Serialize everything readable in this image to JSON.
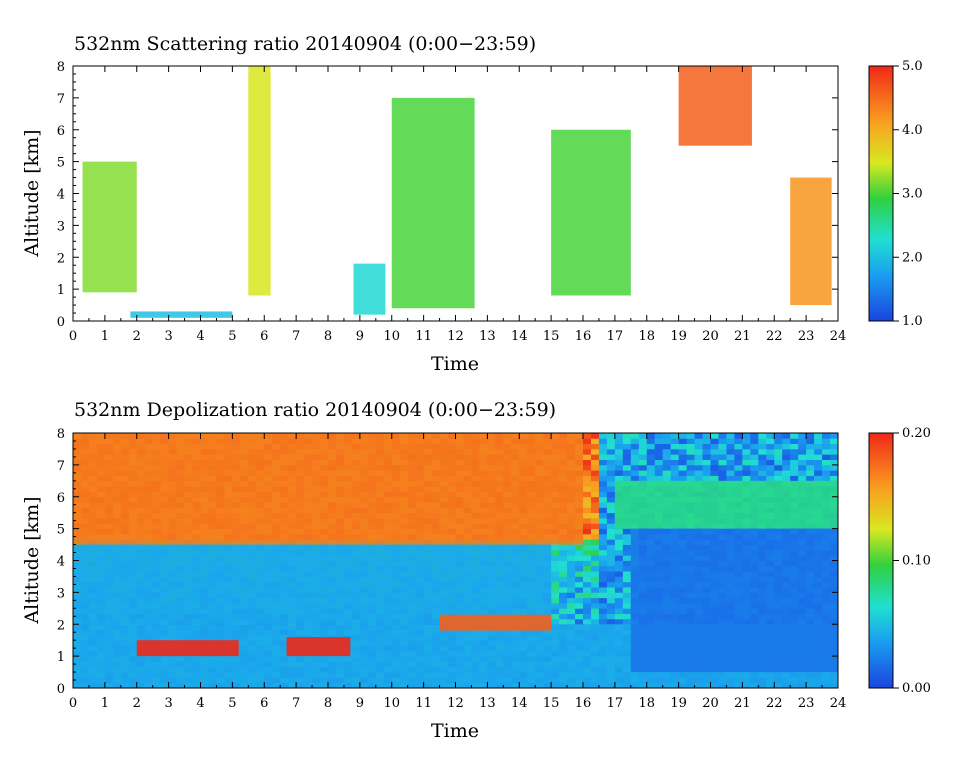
{
  "chart_data": [
    {
      "type": "heatmap",
      "title": "532nm Scattering ratio  20140904 (0:00−23:59)",
      "xlabel": "Time",
      "ylabel": "Altitude [km]",
      "xlim": [
        0,
        24
      ],
      "ylim": [
        0,
        8
      ],
      "x_ticks": [
        "0",
        "1",
        "2",
        "3",
        "4",
        "5",
        "6",
        "7",
        "8",
        "9",
        "10",
        "11",
        "12",
        "13",
        "14",
        "15",
        "16",
        "17",
        "18",
        "19",
        "20",
        "21",
        "22",
        "23",
        "24"
      ],
      "y_ticks": [
        "0",
        "1",
        "2",
        "3",
        "4",
        "5",
        "6",
        "7",
        "8"
      ],
      "colorbar": {
        "min": 1.0,
        "max": 5.0,
        "ticks": [
          "1.0",
          "2.0",
          "3.0",
          "4.0",
          "5.0"
        ],
        "colormap": "rainbow"
      },
      "background": "#ffffff",
      "features": [
        {
          "x": [
            0.3,
            2.0
          ],
          "y": [
            0.9,
            5.0
          ],
          "value": 3.2
        },
        {
          "x": [
            1.8,
            5.0
          ],
          "y": [
            0.1,
            0.3
          ],
          "value": 2.0
        },
        {
          "x": [
            5.5,
            6.2
          ],
          "y": [
            0.8,
            8.0
          ],
          "value": 3.5
        },
        {
          "x": [
            8.8,
            9.8
          ],
          "y": [
            0.2,
            1.8
          ],
          "value": 2.2
        },
        {
          "x": [
            10.0,
            12.6
          ],
          "y": [
            0.4,
            7.0
          ],
          "value": 3.0
        },
        {
          "x": [
            15.0,
            17.5
          ],
          "y": [
            0.8,
            6.0
          ],
          "value": 3.0
        },
        {
          "x": [
            19.0,
            21.3
          ],
          "y": [
            5.5,
            8.0
          ],
          "value": 4.6
        },
        {
          "x": [
            22.5,
            23.8
          ],
          "y": [
            0.5,
            4.5
          ],
          "value": 4.2
        }
      ]
    },
    {
      "type": "heatmap",
      "title": "532nm Depolization ratio  20140904 (0:00−23:59)",
      "xlabel": "Time",
      "ylabel": "Altitude [km]",
      "xlim": [
        0,
        24
      ],
      "ylim": [
        0,
        8
      ],
      "x_ticks": [
        "0",
        "1",
        "2",
        "3",
        "4",
        "5",
        "6",
        "7",
        "8",
        "9",
        "10",
        "11",
        "12",
        "13",
        "14",
        "15",
        "16",
        "17",
        "18",
        "19",
        "20",
        "21",
        "22",
        "23",
        "24"
      ],
      "y_ticks": [
        "0",
        "1",
        "2",
        "3",
        "4",
        "5",
        "6",
        "7",
        "8"
      ],
      "colorbar": {
        "min": 0.0,
        "max": 0.2,
        "ticks": [
          "0.00",
          "0.10",
          "0.20"
        ],
        "colormap": "rainbow"
      },
      "features": [
        {
          "x": [
            0,
            16
          ],
          "y": [
            4.5,
            8.0
          ],
          "value": 0.17
        },
        {
          "x": [
            0,
            15
          ],
          "y": [
            2.0,
            4.5
          ],
          "value": 0.04
        },
        {
          "x": [
            0,
            24
          ],
          "y": [
            0.0,
            2.0
          ],
          "value": 0.04
        },
        {
          "x": [
            2.0,
            5.2
          ],
          "y": [
            1.0,
            1.5
          ],
          "value": 0.2
        },
        {
          "x": [
            6.7,
            8.7
          ],
          "y": [
            1.0,
            1.6
          ],
          "value": 0.2
        },
        {
          "x": [
            11.5,
            15.0
          ],
          "y": [
            1.8,
            2.3
          ],
          "value": 0.18
        },
        {
          "x": [
            17.0,
            24.0
          ],
          "y": [
            5.0,
            6.5
          ],
          "value": 0.08
        },
        {
          "x": [
            17.5,
            24.0
          ],
          "y": [
            0.5,
            5.0
          ],
          "value": 0.02
        }
      ]
    }
  ]
}
